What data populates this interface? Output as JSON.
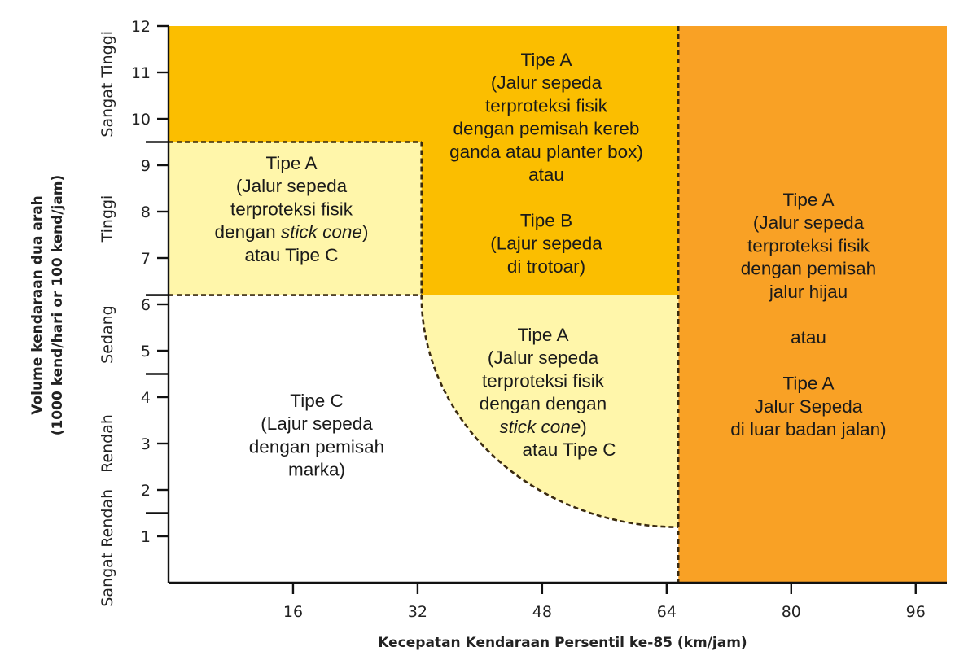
{
  "chart_data": {
    "type": "area",
    "xlabel": "Kecepatan Kendaraan Persentil ke-85 (km/jam)",
    "ylabel_lines": [
      "Volume kendaraan dua arah",
      "(1000 kend/hari or 100 kend/jam)"
    ],
    "xlim": [
      0,
      100
    ],
    "ylim": [
      0,
      12
    ],
    "x_ticks": [
      16,
      32,
      48,
      64,
      80,
      96
    ],
    "y_ticks": [
      1,
      2,
      3,
      4,
      5,
      6,
      7,
      8,
      9,
      10,
      11,
      12
    ],
    "volume_category_bounds": [
      1.5,
      4.5,
      6.2,
      9.5
    ],
    "volume_categories": [
      {
        "label": "Sangat Rendah",
        "y_range": [
          0,
          1.5
        ]
      },
      {
        "label": "Rendah",
        "y_range": [
          1.5,
          4.5
        ]
      },
      {
        "label": "Sedang",
        "y_range": [
          4.5,
          6.2
        ]
      },
      {
        "label": "Tinggi",
        "y_range": [
          6.2,
          9.5
        ]
      },
      {
        "label": "Sangat Tinggi",
        "y_range": [
          9.5,
          12
        ]
      }
    ],
    "colors": {
      "high_speed": "#F9A125",
      "high_volume": "#FBBE00",
      "medium": "#FFF6AA",
      "low": "#FFFFFF",
      "boundary": "#3a2a10"
    },
    "regions": [
      {
        "id": "high-speed",
        "bounds": {
          "x": [
            65.5,
            100
          ],
          "y": [
            0,
            12
          ]
        },
        "lines": [
          "Tipe A",
          "(Jalur sepeda",
          "terproteksi fisik",
          "dengan pemisah",
          "jalur hijau",
          "",
          "atau",
          "",
          "Tipe A",
          "Jalur Sepeda",
          "di luar badan jalan)"
        ]
      },
      {
        "id": "upper",
        "bounds": {
          "x": [
            0,
            65.5
          ],
          "y": [
            6.2,
            12
          ]
        },
        "lines": [
          "Tipe A",
          "(Jalur sepeda",
          "terproteksi fisik",
          "dengan pemisah kereb",
          "ganda atau planter box)",
          "atau",
          "",
          "Tipe B",
          "(Lajur sepeda",
          "di trotoar)"
        ]
      },
      {
        "id": "upper-left",
        "bounds": {
          "x": [
            0,
            32.5
          ],
          "y": [
            6.2,
            9.5
          ]
        },
        "lines": [
          "Tipe A",
          "(Jalur sepeda",
          "terproteksi fisik",
          "dengan stick cone)",
          "atau Tipe C"
        ]
      },
      {
        "id": "quarter-circle",
        "bounds": {
          "x": [
            32.5,
            65.5
          ],
          "y": [
            1.2,
            6.2
          ]
        },
        "lines": [
          "Tipe A",
          "(Jalur sepeda",
          "terproteksi fisik",
          "dengan dengan",
          "stick cone)",
          "atau Tipe C"
        ]
      },
      {
        "id": "lower-left",
        "bounds": {
          "x": [
            0,
            65.5
          ],
          "y": [
            0,
            6.2
          ]
        },
        "lines": [
          "Tipe C",
          "(Lajur sepeda",
          "dengan pemisah",
          "marka)"
        ]
      }
    ]
  }
}
